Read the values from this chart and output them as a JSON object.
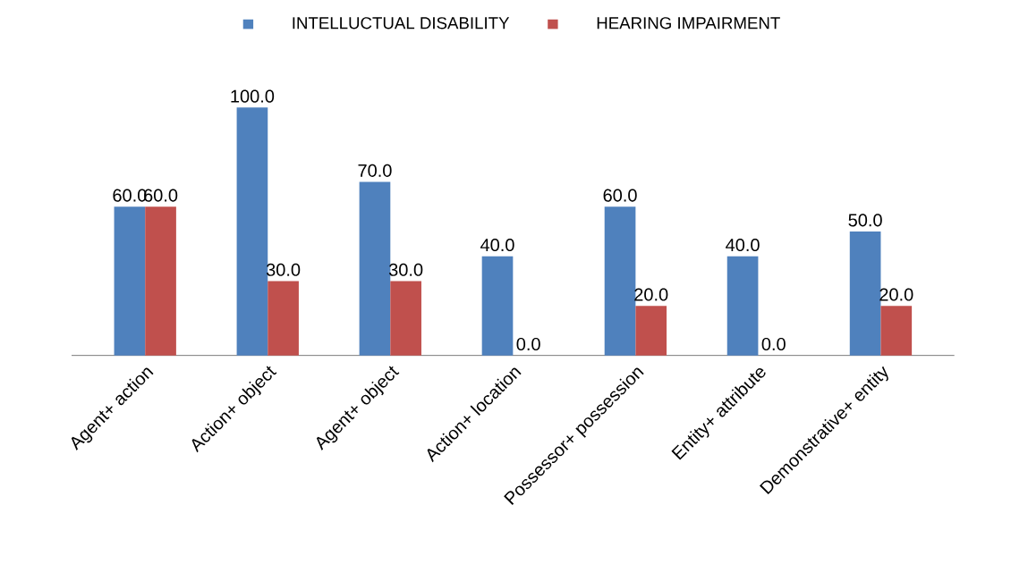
{
  "chart_data": {
    "type": "bar",
    "categories": [
      "Agent+ action",
      "Action+ object",
      "Agent+ object",
      "Action+ location",
      "Possessor+ possession",
      "Entity+ attribute",
      "Demonstrative+ entity"
    ],
    "series": [
      {
        "name": "INTELLUCTUAL DISABILITY",
        "color": "#4f81bd",
        "values": [
          60,
          100,
          70,
          40,
          60,
          40,
          50
        ],
        "value_labels": [
          "60.0",
          "100.0",
          "70.0",
          "40.0",
          "60.0",
          "40.0",
          "50.0"
        ]
      },
      {
        "name": "HEARING IMPAIRMENT",
        "color": "#c0504d",
        "values": [
          60,
          30,
          30,
          0,
          20,
          0,
          20
        ],
        "value_labels": [
          "60.0",
          "30.0",
          "30.0",
          "0.0",
          "20.0",
          "0.0",
          "20.0"
        ]
      }
    ],
    "legend": "top"
  }
}
